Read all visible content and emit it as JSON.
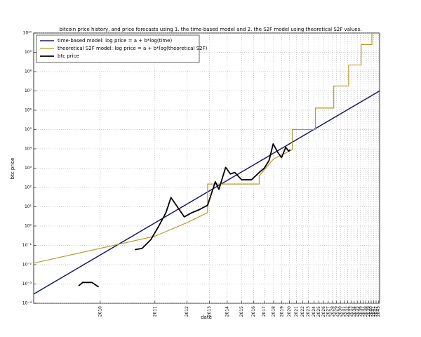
{
  "chart_data": {
    "type": "line",
    "title": "bitcoin price history, and price forecasts using 1. the time-based model and 2. the S2F model using theoretical S2F values.",
    "xlabel": "date",
    "ylabel": "btc price",
    "xscale": "log_since",
    "xorigin": 2009,
    "yscale": "log",
    "xlim": [
      2009.43,
      2043.5
    ],
    "ylim": [
      0.0001,
      10000000000
    ],
    "xticks": [
      2010,
      2011,
      2012,
      2013,
      2014,
      2015,
      2016,
      2017,
      2018,
      2019,
      2020,
      2021,
      2022,
      2023,
      2024,
      2025,
      2026,
      2027,
      2028,
      2029,
      2030,
      2031,
      2032,
      2033,
      2034,
      2035,
      2036,
      2037,
      2038,
      2039,
      2040,
      2041,
      2042,
      2043
    ],
    "yticks": [
      {
        "value": 0.0001,
        "label": "10⁻⁴"
      },
      {
        "value": 0.001,
        "label": "10⁻³"
      },
      {
        "value": 0.01,
        "label": "10⁻²"
      },
      {
        "value": 0.1,
        "label": "10⁻¹"
      },
      {
        "value": 1,
        "label": "10⁰"
      },
      {
        "value": 10,
        "label": "10¹"
      },
      {
        "value": 100,
        "label": "10²"
      },
      {
        "value": 1000,
        "label": "10³"
      },
      {
        "value": 10000,
        "label": "10⁴"
      },
      {
        "value": 100000,
        "label": "10⁵"
      },
      {
        "value": 1000000,
        "label": "10⁶"
      },
      {
        "value": 10000000,
        "label": "10⁷"
      },
      {
        "value": 100000000,
        "label": "10⁸"
      },
      {
        "value": 1000000000,
        "label": "10⁹"
      },
      {
        "value": 10000000000,
        "label": "10¹⁰"
      }
    ],
    "grid": true,
    "legend": "upper-left",
    "series": [
      {
        "name": "time-based model: log price = a + b*log(time)",
        "color": "#1a1a6e",
        "width": 1.5,
        "x": [
          2009.43,
          2043.5
        ],
        "values": [
          0.0003,
          10000000
        ]
      },
      {
        "name": "theoretical S2F model: log price = a + b*log(theoretical S2F)",
        "color": "#b89a2e",
        "width": 1.2,
        "x": [
          2009.43,
          2011.0,
          2012.0,
          2012.9,
          2012.9,
          2016.5,
          2016.5,
          2018.0,
          2020.4,
          2020.4,
          2024.3,
          2024.3,
          2028.3,
          2028.3,
          2032.3,
          2032.3,
          2036.3,
          2036.3,
          2040.3,
          2040.3
        ],
        "values": [
          0.012,
          0.3,
          1.5,
          5,
          150,
          150,
          400,
          3000,
          9000,
          100000,
          100000,
          1300000,
          1300000,
          18000000,
          18000000,
          220000000,
          220000000,
          2500000000,
          2500000000,
          10000000000
        ]
      },
      {
        "name": "btc price",
        "color": "#000000",
        "width": 1.8,
        "x": [
          2009.76,
          2009.8,
          2009.9,
          2009.98,
          null,
          2010.55,
          2010.7,
          2010.9,
          2011.1,
          2011.3,
          2011.45,
          2011.7,
          2011.9,
          2012.2,
          2012.5,
          2012.9,
          2013.3,
          2013.5,
          2013.9,
          2014.2,
          2014.5,
          2015.0,
          2015.8,
          2016.5,
          2017.0,
          2017.5,
          2017.95,
          2018.5,
          2018.95,
          2019.5,
          2019.9,
          2020.1
        ],
        "values": [
          0.0008,
          0.0012,
          0.0012,
          0.0007,
          null,
          0.06,
          0.07,
          0.2,
          1,
          5,
          30,
          8,
          3,
          5,
          7,
          12,
          200,
          80,
          1100,
          500,
          600,
          250,
          250,
          600,
          1000,
          2500,
          18000,
          6500,
          3500,
          12000,
          7500,
          9000
        ]
      }
    ]
  }
}
